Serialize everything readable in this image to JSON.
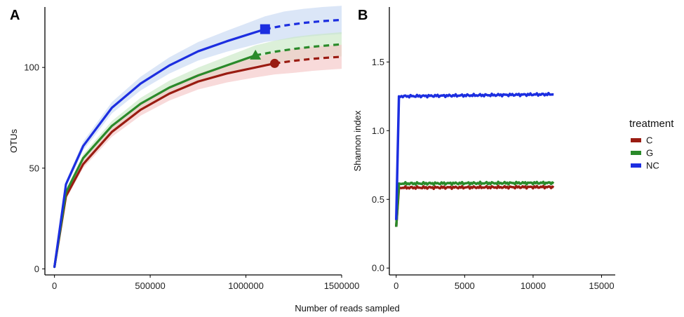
{
  "xlabel_shared": "Number of reads sampled",
  "chart_data": [
    {
      "panel": "A",
      "type": "line",
      "ylabel": "OTUs",
      "xlim": [
        -50000,
        1500000
      ],
      "ylim": [
        -3,
        130
      ],
      "xticks": [
        0,
        500000,
        1000000,
        1500000
      ],
      "xtick_labels": [
        "0",
        "500000",
        "1000000",
        "1500000"
      ],
      "yticks": [
        0,
        50,
        100
      ],
      "ytick_labels": [
        "0",
        "50",
        "100"
      ],
      "grid": false,
      "series": [
        {
          "name": "C",
          "color": "#9a1c12",
          "band_color": "#f4c6c6",
          "observed": {
            "x": [
              0,
              60000,
              150000,
              300000,
              450000,
              600000,
              750000,
              900000,
              1050000,
              1150000
            ],
            "y": [
              1,
              36,
              52,
              68,
              79,
              87,
              93,
              97,
              100,
              102
            ]
          },
          "extrapolated": {
            "x": [
              1150000,
              1250000,
              1350000,
              1450000,
              1500000
            ],
            "y": [
              102,
              103.3,
              104.3,
              105,
              105.3
            ]
          },
          "band_halfwidth": 6,
          "end_marker": "circle"
        },
        {
          "name": "G",
          "color": "#2a8a2a",
          "band_color": "#c9e8c4",
          "observed": {
            "x": [
              0,
              60000,
              150000,
              300000,
              450000,
              600000,
              750000,
              900000,
              1050000
            ],
            "y": [
              1,
              38,
              55,
              71,
              82,
              90,
              96,
              101,
              106
            ]
          },
          "extrapolated": {
            "x": [
              1050000,
              1150000,
              1250000,
              1350000,
              1450000,
              1500000
            ],
            "y": [
              106,
              107.8,
              109.2,
              110.3,
              111.1,
              111.5
            ]
          },
          "band_halfwidth": 6,
          "end_marker": "triangle"
        },
        {
          "name": "NC",
          "color": "#1c2ee0",
          "band_color": "#c8d8f2",
          "observed": {
            "x": [
              0,
              60000,
              150000,
              300000,
              450000,
              600000,
              750000,
              900000,
              1000000,
              1100000
            ],
            "y": [
              1,
              42,
              61,
              80,
              92,
              101,
              108,
              113,
              116,
              119
            ]
          },
          "extrapolated": {
            "x": [
              1100000,
              1200000,
              1300000,
              1400000,
              1500000
            ],
            "y": [
              119,
              120.8,
              122.1,
              123,
              123.6
            ]
          },
          "band_halfwidth": 7,
          "end_marker": "square"
        }
      ]
    },
    {
      "panel": "B",
      "type": "line",
      "ylabel": "Shannon index",
      "xlim": [
        -500,
        16000
      ],
      "ylim": [
        -0.05,
        1.9
      ],
      "xticks": [
        0,
        5000,
        10000,
        15000
      ],
      "xtick_labels": [
        "0",
        "5000",
        "10000",
        "15000"
      ],
      "yticks": [
        0.0,
        0.5,
        1.0,
        1.5
      ],
      "ytick_labels": [
        "0.0",
        "0.5",
        "1.0",
        "1.5"
      ],
      "grid": false,
      "series": [
        {
          "name": "C",
          "color": "#9a1c12",
          "x": [
            0,
            200,
            11500
          ],
          "y": [
            0.3,
            0.585,
            0.59
          ]
        },
        {
          "name": "G",
          "color": "#2a8a2a",
          "x": [
            0,
            200,
            11500
          ],
          "y": [
            0.3,
            0.615,
            0.62
          ]
        },
        {
          "name": "NC",
          "color": "#1c2ee0",
          "x": [
            0,
            200,
            11500
          ],
          "y": [
            0.35,
            1.25,
            1.265
          ]
        }
      ]
    }
  ],
  "legend": {
    "title": "treatment",
    "placement": "right",
    "items": [
      {
        "label": "C",
        "color": "#9a1c12"
      },
      {
        "label": "G",
        "color": "#2a8a2a"
      },
      {
        "label": "NC",
        "color": "#1c2ee0"
      }
    ]
  }
}
